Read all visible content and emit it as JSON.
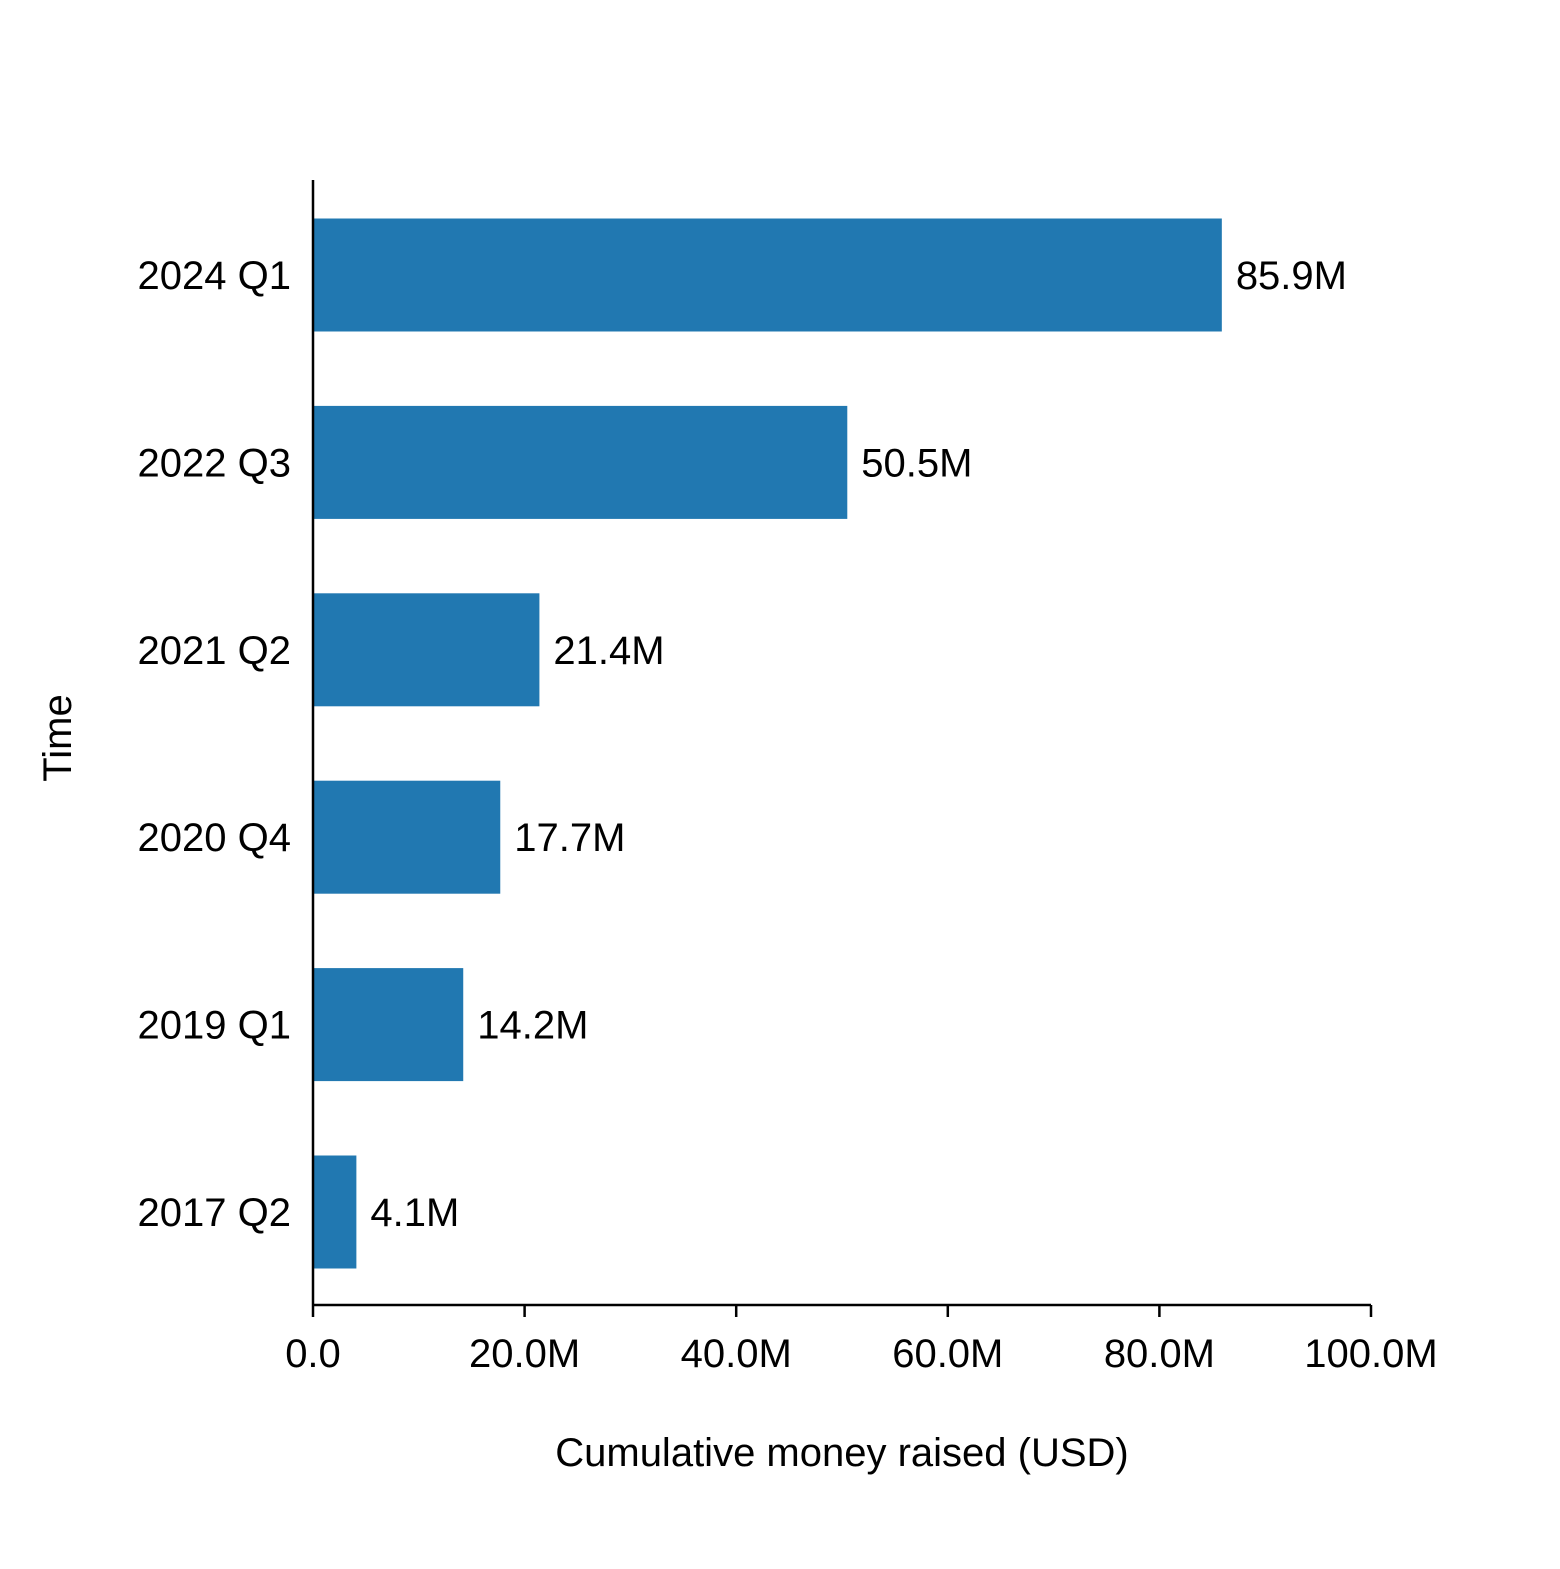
{
  "chart_data": {
    "type": "bar",
    "orientation": "horizontal",
    "title": "",
    "xlabel": "Cumulative money raised (USD)",
    "ylabel": "Time",
    "categories": [
      "2024 Q1",
      "2022 Q3",
      "2021 Q2",
      "2020 Q4",
      "2019 Q1",
      "2017 Q2"
    ],
    "values": [
      85900000,
      50500000,
      21400000,
      17700000,
      14200000,
      4100000
    ],
    "value_labels": [
      "85.9M",
      "50.5M",
      "21.4M",
      "17.7M",
      "14.2M",
      "4.1M"
    ],
    "xlim": [
      0,
      100000000
    ],
    "xticks": [
      0,
      20000000,
      40000000,
      60000000,
      80000000,
      100000000
    ],
    "xtick_labels": [
      "0.0",
      "20.0M",
      "40.0M",
      "60.0M",
      "80.0M",
      "100.0M"
    ],
    "bar_color": "#2178b1",
    "grid": false,
    "legend": "none"
  }
}
